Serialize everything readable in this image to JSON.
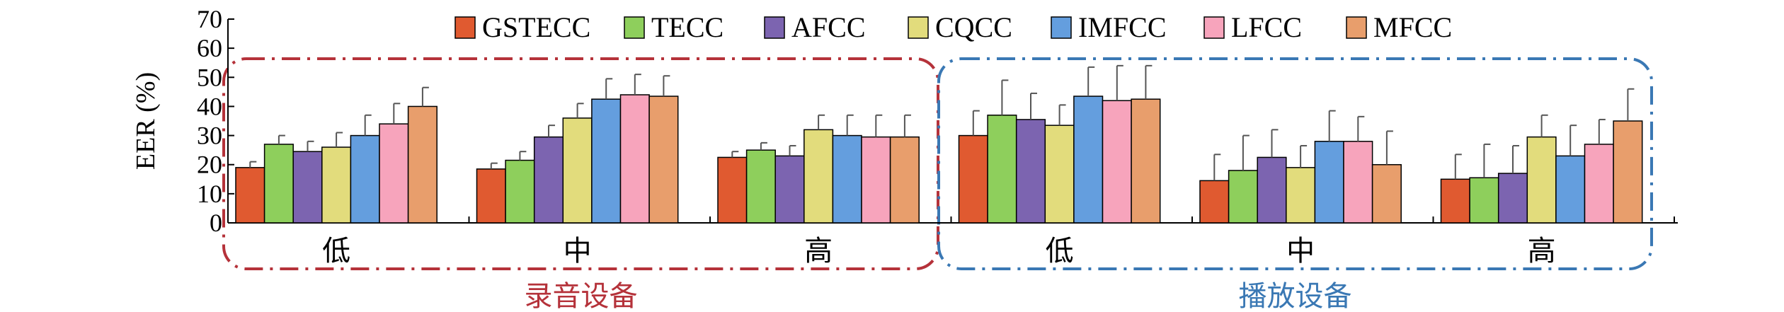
{
  "chart_data": {
    "type": "bar",
    "ylabel": "EER (%)",
    "ylim": [
      0,
      70
    ],
    "yticks": [
      0,
      10,
      20,
      30,
      40,
      50,
      60,
      70
    ],
    "grid": false,
    "legend_position": "top",
    "categories": [
      "低",
      "中",
      "高",
      "低",
      "中",
      "高"
    ],
    "groups": [
      {
        "label": "录音设备",
        "categories": [
          0,
          1,
          2
        ],
        "color": "#b5323a"
      },
      {
        "label": "播放设备",
        "categories": [
          3,
          4,
          5
        ],
        "color": "#3a78b4"
      }
    ],
    "series": [
      {
        "name": "GSTECC",
        "color": "#e05a30",
        "values": [
          19,
          18.5,
          22.5,
          30,
          14.5,
          15
        ],
        "errors": [
          2,
          2,
          2,
          8.5,
          9,
          8.5
        ]
      },
      {
        "name": "TECC",
        "color": "#8ecf5c",
        "values": [
          27,
          21.5,
          25,
          37,
          18,
          15.5
        ],
        "errors": [
          3,
          3,
          2.5,
          12,
          12,
          11.5
        ]
      },
      {
        "name": "AFCC",
        "color": "#7c64b0",
        "values": [
          24.5,
          29.5,
          23,
          35.5,
          22.5,
          17
        ],
        "errors": [
          3.5,
          4,
          3.5,
          9,
          9.5,
          9.5
        ]
      },
      {
        "name": "CQCC",
        "color": "#e2dc7c",
        "values": [
          26,
          36,
          32,
          33.5,
          19,
          29.5
        ],
        "errors": [
          5,
          5,
          5,
          7,
          7.5,
          7.5
        ]
      },
      {
        "name": "IMFCC",
        "color": "#649ede",
        "values": [
          30,
          42.5,
          30,
          43.5,
          28,
          23
        ],
        "errors": [
          7,
          7,
          7,
          10,
          10.5,
          10.5
        ]
      },
      {
        "name": "LFCC",
        "color": "#f7a4bc",
        "values": [
          34,
          44,
          29.5,
          42,
          28,
          27
        ],
        "errors": [
          7,
          7,
          7.5,
          12,
          8.5,
          8.5
        ]
      },
      {
        "name": "MFCC",
        "color": "#e89e6c",
        "values": [
          40,
          43.5,
          29.5,
          42.5,
          20,
          35
        ],
        "errors": [
          6.5,
          7,
          7.5,
          11.5,
          11.5,
          11
        ]
      }
    ]
  }
}
